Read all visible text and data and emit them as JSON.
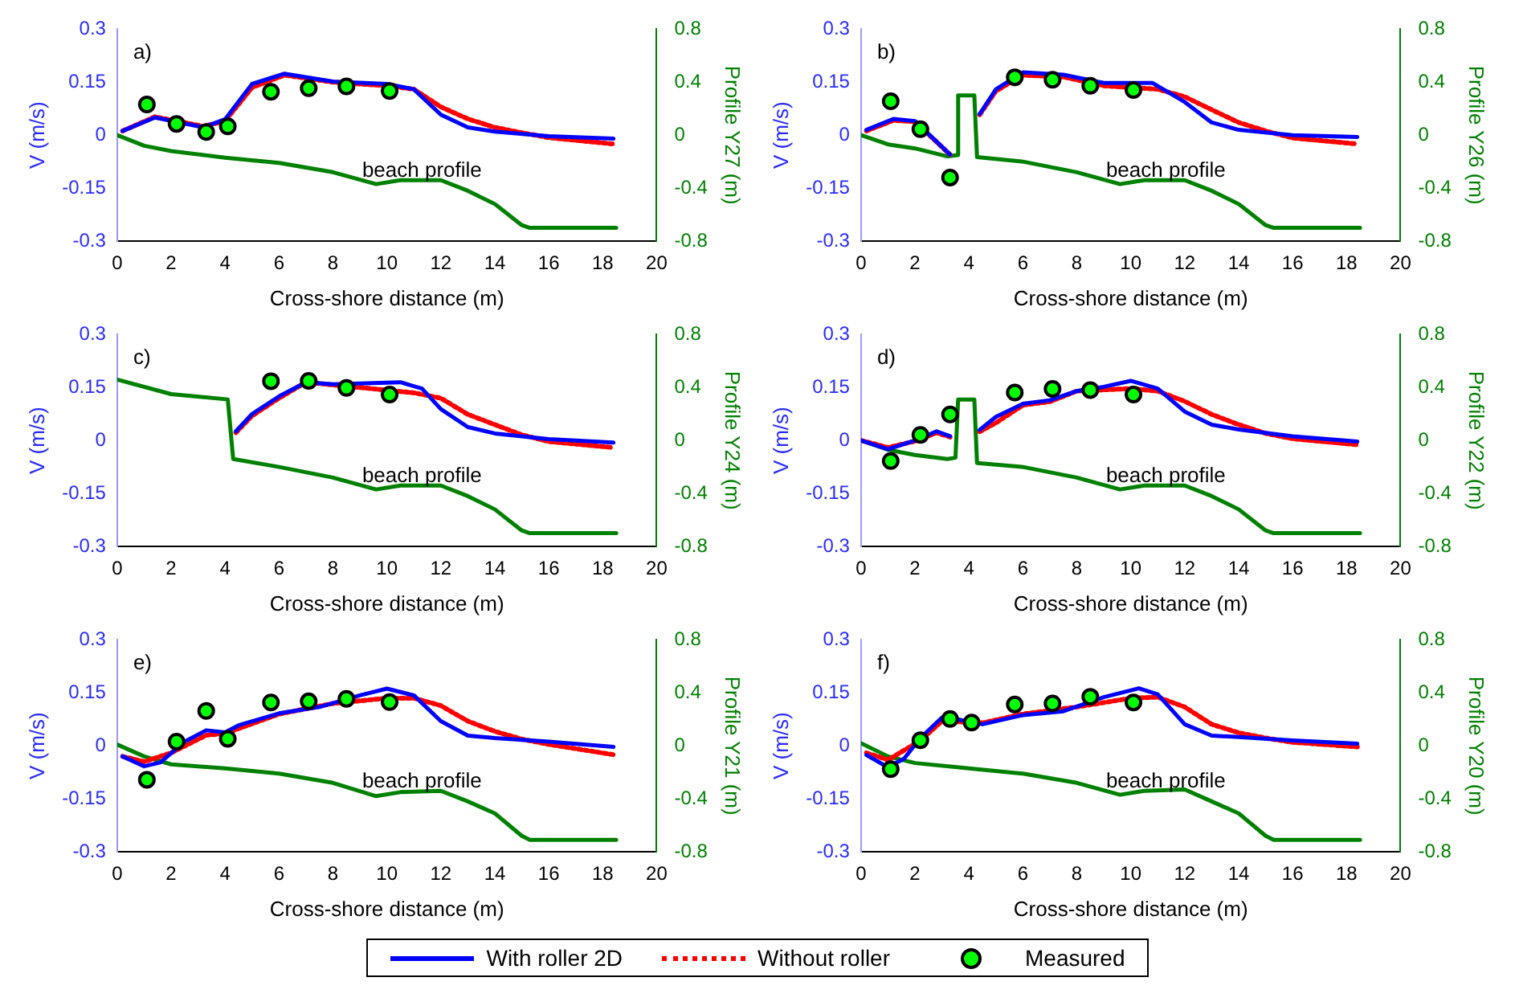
{
  "chart_data": [
    {
      "type": "line",
      "xlabel": "Cross-shore distance (m)",
      "ylabel": "V (m/s)",
      "y2label": "Profile Y27 (m)",
      "annotations": [
        "a)",
        "beach profile"
      ],
      "xlim": [
        0,
        20
      ],
      "xticks": [
        0,
        2,
        4,
        6,
        8,
        10,
        12,
        14,
        16,
        18,
        20
      ],
      "ylim": [
        -0.3,
        0.3
      ],
      "yticks": [
        -0.3,
        -0.15,
        0,
        0.15,
        0.3
      ],
      "y2lim": [
        -0.8,
        0.8
      ],
      "y2ticks": [
        -0.8,
        -0.4,
        0,
        0.4,
        0.8
      ],
      "grid": false,
      "legend": false,
      "series": [
        {
          "type": "line",
          "color": "#0000ff",
          "line_style": "solid",
          "marker": "none",
          "x": [
            0.2,
            1.4,
            3.2,
            4,
            5,
            6.2,
            8,
            10,
            11,
            12,
            13,
            14,
            16,
            18.4
          ],
          "values": [
            0.012,
            0.05,
            0.022,
            0.045,
            0.145,
            0.174,
            0.152,
            0.145,
            0.13,
            0.058,
            0.022,
            0.01,
            -0.003,
            -0.01
          ]
        },
        {
          "type": "line",
          "color": "#ff0000",
          "line_style": "dotted",
          "marker": "none",
          "x": [
            0.2,
            1.4,
            3.2,
            4,
            5,
            6.2,
            8,
            10,
            11,
            12,
            13,
            14,
            15,
            16,
            18.4
          ],
          "values": [
            0.012,
            0.052,
            0.025,
            0.04,
            0.135,
            0.17,
            0.15,
            0.14,
            0.13,
            0.08,
            0.046,
            0.022,
            0.007,
            -0.007,
            -0.025
          ]
        },
        {
          "type": "scatter",
          "color": "#00ff00",
          "marker": "circle",
          "x": [
            1.1,
            2.2,
            3.3,
            4.1,
            5.7,
            7.1,
            8.5,
            10.1
          ],
          "values": [
            0.087,
            0.032,
            0.009,
            0.025,
            0.123,
            0.133,
            0.138,
            0.125
          ]
        },
        {
          "type": "line",
          "color": "#008000",
          "axis": "y2",
          "line_style": "solid",
          "marker": "none",
          "x": [
            0,
            1,
            2,
            4,
            6,
            8,
            9.6,
            10.5,
            12,
            13,
            14,
            15,
            15.3,
            18.5
          ],
          "values": [
            0,
            -0.08,
            -0.12,
            -0.17,
            -0.21,
            -0.28,
            -0.37,
            -0.34,
            -0.34,
            -0.42,
            -0.52,
            -0.68,
            -0.7,
            -0.7
          ]
        }
      ]
    },
    {
      "type": "line",
      "xlabel": "Cross-shore distance (m)",
      "ylabel": "V (m/s)",
      "y2label": "Profile Y26 (m)",
      "annotations": [
        "b)",
        "beach profile"
      ],
      "xlim": [
        0,
        20
      ],
      "xticks": [
        0,
        2,
        4,
        6,
        8,
        10,
        12,
        14,
        16,
        18,
        20
      ],
      "ylim": [
        -0.3,
        0.3
      ],
      "yticks": [
        -0.3,
        -0.15,
        0,
        0.15,
        0.3
      ],
      "y2lim": [
        -0.8,
        0.8
      ],
      "y2ticks": [
        -0.8,
        -0.4,
        0,
        0.4,
        0.8
      ],
      "grid": false,
      "legend": false,
      "series": [
        {
          "type": "line",
          "color": "#0000ff",
          "line_style": "solid",
          "marker": "none",
          "x": [
            0.2,
            1.2,
            2,
            3.3,
            3.8,
            4.4,
            5,
            6,
            7.5,
            9,
            10.8,
            12,
            13,
            14,
            16,
            18.4
          ],
          "values": [
            0.015,
            0.046,
            0.04,
            -0.055,
            null,
            0.06,
            0.13,
            0.178,
            0.171,
            0.148,
            0.148,
            0.094,
            0.036,
            0.015,
            0,
            -0.005
          ]
        },
        {
          "type": "line",
          "color": "#ff0000",
          "line_style": "dotted",
          "marker": "none",
          "x": [
            0.2,
            1.2,
            2,
            3.3,
            3.8,
            4.4,
            5,
            6,
            7.5,
            9,
            11,
            12,
            13,
            14,
            15,
            16,
            18.4
          ],
          "values": [
            0.012,
            0.042,
            0.038,
            -0.055,
            null,
            0.058,
            0.125,
            0.17,
            0.165,
            0.14,
            0.13,
            0.109,
            0.072,
            0.036,
            0.012,
            -0.008,
            -0.025
          ]
        },
        {
          "type": "scatter",
          "color": "#00ff00",
          "marker": "circle",
          "x": [
            1.1,
            2.2,
            3.3,
            5.7,
            7.1,
            8.5,
            10.1
          ],
          "values": [
            0.096,
            0.017,
            -0.12,
            0.164,
            0.157,
            0.14,
            0.128
          ]
        },
        {
          "type": "line",
          "color": "#008000",
          "axis": "y2",
          "line_style": "solid",
          "marker": "none",
          "x": [
            0,
            1,
            2,
            3.2,
            3.6,
            3.6,
            4.2,
            4.3,
            6,
            8,
            9.6,
            10.5,
            12,
            13,
            14,
            15,
            15.3,
            18.5
          ],
          "values": [
            0,
            -0.07,
            -0.1,
            -0.16,
            -0.15,
            0.3,
            0.3,
            -0.166,
            -0.2,
            -0.28,
            -0.37,
            -0.34,
            -0.34,
            -0.42,
            -0.52,
            -0.68,
            -0.7,
            -0.7
          ]
        }
      ]
    },
    {
      "type": "line",
      "xlabel": "Cross-shore distance (m)",
      "ylabel": "V (m/s)",
      "y2label": "Profile Y24 (m)",
      "annotations": [
        "c)",
        "beach profile"
      ],
      "xlim": [
        0,
        20
      ],
      "xticks": [
        0,
        2,
        4,
        6,
        8,
        10,
        12,
        14,
        16,
        18,
        20
      ],
      "ylim": [
        -0.3,
        0.3
      ],
      "yticks": [
        -0.3,
        -0.15,
        0,
        0.15,
        0.3
      ],
      "y2lim": [
        -0.8,
        0.8
      ],
      "y2ticks": [
        -0.8,
        -0.4,
        0,
        0.4,
        0.8
      ],
      "grid": false,
      "legend": false,
      "series": [
        {
          "type": "line",
          "color": "#0000ff",
          "line_style": "solid",
          "marker": "none",
          "x": [
            4.4,
            5,
            6,
            7,
            8,
            10.5,
            11.3,
            12,
            13,
            14,
            16,
            18.4
          ],
          "values": [
            0.026,
            0.075,
            0.125,
            0.165,
            0.159,
            0.165,
            0.147,
            0.089,
            0.038,
            0.02,
            0.004,
            -0.006
          ]
        },
        {
          "type": "line",
          "color": "#ff0000",
          "line_style": "dotted",
          "marker": "none",
          "x": [
            4.4,
            5,
            6,
            7,
            9,
            11,
            12,
            13,
            14,
            15,
            16,
            18.4
          ],
          "values": [
            0.022,
            0.07,
            0.12,
            0.165,
            0.15,
            0.135,
            0.12,
            0.074,
            0.045,
            0.016,
            -0.003,
            -0.02
          ]
        },
        {
          "type": "scatter",
          "color": "#00ff00",
          "marker": "circle",
          "x": [
            5.7,
            7.1,
            8.5,
            10.1
          ],
          "values": [
            0.168,
            0.169,
            0.149,
            0.13
          ]
        },
        {
          "type": "line",
          "color": "#008000",
          "axis": "y2",
          "line_style": "solid",
          "marker": "none",
          "x": [
            0,
            2,
            4.1,
            4.3,
            6,
            8,
            9.6,
            10.5,
            12,
            13,
            14,
            15,
            15.3,
            18.5
          ],
          "values": [
            0.46,
            0.35,
            0.31,
            -0.14,
            -0.2,
            -0.28,
            -0.37,
            -0.34,
            -0.34,
            -0.42,
            -0.52,
            -0.68,
            -0.7,
            -0.7
          ]
        }
      ]
    },
    {
      "type": "line",
      "xlabel": "Cross-shore distance (m)",
      "ylabel": "V (m/s)",
      "y2label": "Profile Y22 (m)",
      "annotations": [
        "d)",
        "beach profile"
      ],
      "xlim": [
        0,
        20
      ],
      "xticks": [
        0,
        2,
        4,
        6,
        8,
        10,
        12,
        14,
        16,
        18,
        20
      ],
      "ylim": [
        -0.3,
        0.3
      ],
      "yticks": [
        -0.3,
        -0.15,
        0,
        0.15,
        0.3
      ],
      "y2lim": [
        -0.8,
        0.8
      ],
      "y2ticks": [
        -0.8,
        -0.4,
        0,
        0.4,
        0.8
      ],
      "grid": false,
      "legend": false,
      "series": [
        {
          "type": "line",
          "color": "#0000ff",
          "line_style": "solid",
          "marker": "none",
          "x": [
            0,
            1,
            2,
            2.8,
            3.3,
            3.8,
            4.4,
            5,
            6,
            7,
            8,
            9,
            10,
            11,
            12,
            13,
            14,
            16,
            18.4
          ],
          "values": [
            0,
            -0.025,
            0,
            0.026,
            0.012,
            null,
            0.03,
            0.067,
            0.104,
            0.114,
            0.14,
            0.152,
            0.169,
            0.147,
            0.082,
            0.045,
            0.031,
            0.012,
            -0.003
          ]
        },
        {
          "type": "line",
          "color": "#ff0000",
          "line_style": "dotted",
          "marker": "none",
          "x": [
            0,
            1,
            2,
            2.8,
            3.3,
            3.8,
            4.4,
            5,
            6,
            7,
            8,
            10,
            11,
            12,
            13,
            14,
            15,
            16,
            18.4
          ],
          "values": [
            0,
            -0.02,
            -0.002,
            0.022,
            0.01,
            null,
            0.025,
            0.05,
            0.1,
            0.11,
            0.14,
            0.147,
            0.14,
            0.111,
            0.074,
            0.045,
            0.02,
            0.005,
            -0.012
          ]
        },
        {
          "type": "scatter",
          "color": "#00ff00",
          "marker": "circle",
          "x": [
            1.1,
            2.2,
            3.3,
            5.7,
            7.1,
            8.5,
            10.1
          ],
          "values": [
            -0.058,
            0.016,
            0.074,
            0.136,
            0.146,
            0.143,
            0.13
          ]
        },
        {
          "type": "line",
          "color": "#008000",
          "axis": "y2",
          "line_style": "solid",
          "marker": "none",
          "x": [
            0,
            1,
            2,
            3.2,
            3.5,
            3.6,
            4.2,
            4.3,
            6,
            8,
            9.6,
            10.5,
            12,
            13,
            14,
            15,
            15.3,
            18.5
          ],
          "values": [
            0,
            -0.07,
            -0.11,
            -0.14,
            -0.13,
            0.31,
            0.31,
            -0.17,
            -0.2,
            -0.28,
            -0.37,
            -0.34,
            -0.34,
            -0.42,
            -0.52,
            -0.68,
            -0.7,
            -0.7
          ]
        }
      ]
    },
    {
      "type": "line",
      "xlabel": "Cross-shore distance (m)",
      "ylabel": "V (m/s)",
      "y2label": "Profile Y21 (m)",
      "annotations": [
        "e)",
        "beach profile"
      ],
      "xlim": [
        0,
        20
      ],
      "xticks": [
        0,
        2,
        4,
        6,
        8,
        10,
        12,
        14,
        16,
        18,
        20
      ],
      "ylim": [
        -0.3,
        0.3
      ],
      "yticks": [
        -0.3,
        -0.15,
        0,
        0.15,
        0.3
      ],
      "y2lim": [
        -0.8,
        0.8
      ],
      "y2ticks": [
        -0.8,
        -0.4,
        0,
        0.4,
        0.8
      ],
      "grid": false,
      "legend": false,
      "series": [
        {
          "type": "line",
          "color": "#0000ff",
          "line_style": "solid",
          "marker": "none",
          "x": [
            0.2,
            1,
            1.6,
            2.5,
            3.3,
            4,
            4.5,
            6,
            7.5,
            9,
            10,
            11,
            12,
            13,
            14,
            16,
            18.4
          ],
          "values": [
            -0.03,
            -0.058,
            -0.047,
            0.012,
            0.044,
            0.038,
            0.058,
            0.092,
            0.11,
            0.143,
            0.162,
            0.143,
            0.07,
            0.029,
            0.022,
            0.012,
            -0.003
          ]
        },
        {
          "type": "line",
          "color": "#ff0000",
          "line_style": "dotted",
          "marker": "none",
          "x": [
            0.2,
            1,
            2,
            3.3,
            4,
            6,
            8,
            10,
            11,
            12,
            13,
            14,
            15,
            16,
            18.4
          ],
          "values": [
            -0.03,
            -0.045,
            -0.02,
            0.03,
            0.035,
            0.09,
            0.12,
            0.135,
            0.135,
            0.114,
            0.07,
            0.041,
            0.019,
            0.004,
            -0.025
          ]
        },
        {
          "type": "scatter",
          "color": "#00ff00",
          "marker": "circle",
          "x": [
            1.1,
            2.2,
            3.3,
            4.1,
            5.7,
            7.1,
            8.5,
            10.1
          ],
          "values": [
            -0.096,
            0.012,
            0.099,
            0.02,
            0.123,
            0.126,
            0.133,
            0.124
          ]
        },
        {
          "type": "line",
          "color": "#008000",
          "axis": "y2",
          "line_style": "solid",
          "marker": "none",
          "x": [
            0,
            1,
            2,
            4,
            6,
            8,
            9.6,
            10.5,
            12,
            13,
            14,
            15,
            15.3,
            18.5
          ],
          "values": [
            0.01,
            -0.08,
            -0.14,
            -0.17,
            -0.21,
            -0.28,
            -0.38,
            -0.35,
            -0.34,
            -0.42,
            -0.51,
            -0.68,
            -0.71,
            -0.71
          ]
        }
      ]
    },
    {
      "type": "line",
      "xlabel": "Cross-shore distance (m)",
      "ylabel": "V (m/s)",
      "y2label": "Profile Y20 (m)",
      "annotations": [
        "f)",
        "beach profile"
      ],
      "xlim": [
        0,
        20
      ],
      "xticks": [
        0,
        2,
        4,
        6,
        8,
        10,
        12,
        14,
        16,
        18,
        20
      ],
      "ylim": [
        -0.3,
        0.3
      ],
      "yticks": [
        -0.3,
        -0.15,
        0,
        0.15,
        0.3
      ],
      "y2lim": [
        -0.8,
        0.8
      ],
      "y2ticks": [
        -0.8,
        -0.4,
        0,
        0.4,
        0.8
      ],
      "grid": false,
      "legend": "bottom",
      "series": [
        {
          "type": "line",
          "name": "With roller 2D",
          "color": "#0000ff",
          "line_style": "solid",
          "marker": "none",
          "x": [
            0.2,
            1,
            1.6,
            2.2,
            3,
            3.5,
            4.5,
            6,
            7.5,
            9,
            10.3,
            11,
            12,
            13,
            14,
            16,
            18.4
          ],
          "values": [
            -0.026,
            -0.061,
            -0.036,
            0.022,
            0.08,
            0.076,
            0.061,
            0.087,
            0.098,
            0.138,
            0.163,
            0.146,
            0.061,
            0.029,
            0.025,
            0.015,
            0.006
          ]
        },
        {
          "type": "line",
          "name": "Without roller",
          "color": "#ff0000",
          "line_style": "dotted",
          "marker": "none",
          "x": [
            0.2,
            1,
            2.2,
            3,
            4.5,
            6,
            8,
            10,
            11,
            12,
            13,
            14,
            15,
            16,
            18.4
          ],
          "values": [
            -0.02,
            -0.04,
            0.015,
            0.07,
            0.065,
            0.09,
            0.11,
            0.135,
            0.138,
            0.11,
            0.061,
            0.037,
            0.022,
            0.01,
            -0.003
          ]
        },
        {
          "type": "scatter",
          "name": "Measured",
          "color": "#00ff00",
          "marker": "circle",
          "x": [
            1.1,
            2.2,
            3.3,
            4.1,
            5.7,
            7.1,
            8.5,
            10.1
          ],
          "values": [
            -0.066,
            0.016,
            0.076,
            0.066,
            0.117,
            0.12,
            0.139,
            0.123
          ]
        },
        {
          "type": "line",
          "color": "#008000",
          "axis": "y2",
          "line_style": "solid",
          "marker": "none",
          "x": [
            0,
            1,
            2,
            4,
            6,
            8,
            9.6,
            10.5,
            12,
            13,
            14,
            15,
            15.3,
            18.5
          ],
          "values": [
            0.02,
            -0.08,
            -0.13,
            -0.17,
            -0.21,
            -0.28,
            -0.37,
            -0.34,
            -0.33,
            -0.42,
            -0.51,
            -0.68,
            -0.71,
            -0.71
          ]
        }
      ]
    }
  ]
}
